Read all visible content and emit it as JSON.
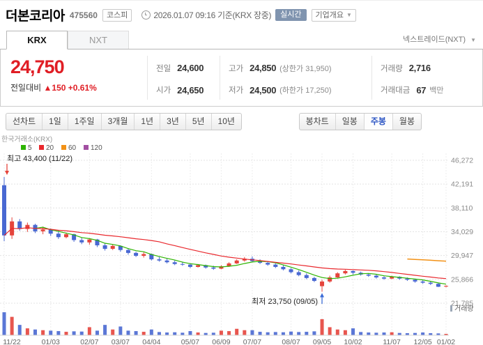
{
  "header": {
    "title": "더본코리아",
    "code": "475560",
    "market_badge": "코스피",
    "timestamp": "2026.01.07 09:16 기준(KRX 장중)",
    "realtime_badge": "실시간",
    "company_overview": "기업개요",
    "caret_down": "▼"
  },
  "tabs": {
    "krx": "KRX",
    "nxt": "NXT",
    "nxt_link": "넥스트레이드(NXT)"
  },
  "price": {
    "current": "24,750",
    "change_label": "전일대비",
    "change_arrow": "▲",
    "change_value": "150",
    "change_percent": "+0.61%"
  },
  "summary": {
    "prev_label": "전일",
    "prev": "24,600",
    "high_label": "고가",
    "high": "24,850",
    "high_note": "(상한가 31,950)",
    "volume_label": "거래량",
    "volume": "2,716",
    "open_label": "시가",
    "open": "24,650",
    "low_label": "저가",
    "low": "24,500",
    "low_note": "(하한가 17,250)",
    "value_label": "거래대금",
    "value": "67",
    "value_unit": "백만"
  },
  "toolbar": {
    "left_items": [
      "선차트",
      "1일",
      "1주일",
      "3개월",
      "1년",
      "3년",
      "5년",
      "10년"
    ],
    "right_items": [
      "봉차트",
      "일봉",
      "주봉",
      "월봉"
    ],
    "selected": "주봉"
  },
  "chart_data": {
    "type": "candlestick",
    "source_label": "한국거래소(KRX)",
    "volume_label": "거래량",
    "up_color": "#e5443c",
    "down_color": "#4968d2",
    "legend": [
      {
        "label": "5",
        "color": "#2db400"
      },
      {
        "label": "20",
        "color": "#e9282d"
      },
      {
        "label": "60",
        "color": "#f29116"
      },
      {
        "label": "120",
        "color": "#a24fa2"
      }
    ],
    "y_ticks": [
      46272,
      42191,
      38110,
      34029,
      29947,
      25866,
      21785
    ],
    "y_tick_labels": [
      "46,272",
      "42,191",
      "38,110",
      "34,029",
      "29,947",
      "25,866",
      "21,785"
    ],
    "x_tick_labels": [
      "11/22",
      "01/03",
      "02/07",
      "03/07",
      "04/04",
      "05/07",
      "06/09",
      "07/07",
      "08/07",
      "09/05",
      "10/02",
      "11/07",
      "12/05",
      "01/02"
    ],
    "x_tick_indices": [
      0,
      6,
      11,
      15,
      19,
      24,
      28,
      32,
      37,
      41,
      45,
      50,
      54,
      57
    ],
    "annotations": {
      "high": {
        "text": "최고 43,400 (11/22)",
        "index": 0,
        "price": 43400
      },
      "low": {
        "text": "최저 23,750 (09/05)",
        "index": 41,
        "price": 23750
      }
    },
    "candles": [
      [
        42000,
        43400,
        32400,
        33400,
        100
      ],
      [
        33400,
        36500,
        32800,
        35800,
        80
      ],
      [
        35800,
        36200,
        34200,
        34500,
        45
      ],
      [
        34500,
        35600,
        34000,
        35200,
        30
      ],
      [
        35200,
        35400,
        33800,
        34100,
        25
      ],
      [
        34100,
        34900,
        33600,
        34400,
        22
      ],
      [
        34400,
        34600,
        33300,
        33700,
        20
      ],
      [
        33700,
        34200,
        32800,
        33100,
        18
      ],
      [
        33100,
        33900,
        32900,
        33600,
        15
      ],
      [
        33600,
        33700,
        32300,
        32600,
        17
      ],
      [
        32600,
        33000,
        31900,
        32200,
        16
      ],
      [
        32200,
        32900,
        31800,
        32700,
        35
      ],
      [
        32700,
        32800,
        31400,
        31700,
        20
      ],
      [
        31700,
        32000,
        30800,
        31100,
        45
      ],
      [
        31100,
        31900,
        30900,
        31600,
        25
      ],
      [
        31600,
        31700,
        30600,
        30900,
        38
      ],
      [
        30900,
        31200,
        30100,
        30400,
        20
      ],
      [
        30400,
        30600,
        29700,
        29900,
        18
      ],
      [
        29900,
        30500,
        29600,
        30200,
        15
      ],
      [
        30200,
        30300,
        29100,
        29300,
        25
      ],
      [
        29300,
        29700,
        28900,
        29100,
        14
      ],
      [
        29100,
        29400,
        28600,
        28800,
        12
      ],
      [
        28800,
        29100,
        28300,
        28500,
        13
      ],
      [
        28500,
        28900,
        28200,
        28400,
        11
      ],
      [
        28400,
        28600,
        27800,
        28000,
        18
      ],
      [
        28000,
        28500,
        27900,
        28300,
        12
      ],
      [
        28300,
        28400,
        27700,
        27900,
        10
      ],
      [
        27900,
        28200,
        27500,
        27700,
        11
      ],
      [
        27700,
        28300,
        27600,
        28100,
        20
      ],
      [
        28100,
        28800,
        28000,
        28600,
        18
      ],
      [
        28600,
        29300,
        28500,
        29100,
        28
      ],
      [
        29100,
        29700,
        28900,
        29400,
        22
      ],
      [
        29400,
        29800,
        28800,
        29000,
        22
      ],
      [
        29000,
        29300,
        28500,
        28700,
        15
      ],
      [
        28700,
        29000,
        28200,
        28400,
        13
      ],
      [
        28400,
        28600,
        27800,
        28000,
        14
      ],
      [
        28000,
        28300,
        27400,
        27600,
        13
      ],
      [
        27600,
        27800,
        26900,
        27100,
        16
      ],
      [
        27100,
        27400,
        26400,
        26600,
        14
      ],
      [
        26600,
        26900,
        25900,
        26100,
        15
      ],
      [
        26100,
        26300,
        25400,
        25600,
        17
      ],
      [
        24700,
        25800,
        23750,
        25500,
        70
      ],
      [
        25500,
        26500,
        25300,
        26200,
        35
      ],
      [
        26200,
        27100,
        26100,
        26900,
        25
      ],
      [
        26900,
        27500,
        26700,
        27300,
        22
      ],
      [
        27300,
        27400,
        26700,
        27000,
        30
      ],
      [
        27000,
        27200,
        26500,
        26700,
        14
      ],
      [
        26700,
        26900,
        26300,
        26500,
        12
      ],
      [
        26500,
        26700,
        26000,
        26200,
        11
      ],
      [
        26200,
        26400,
        25800,
        26000,
        12
      ],
      [
        26000,
        26500,
        25900,
        26300,
        13
      ],
      [
        26300,
        26400,
        25800,
        26000,
        10
      ],
      [
        26000,
        26200,
        25600,
        25800,
        9
      ],
      [
        25800,
        25900,
        25300,
        25500,
        10
      ],
      [
        25500,
        25700,
        25100,
        25300,
        12
      ],
      [
        25300,
        25500,
        24900,
        25100,
        9
      ],
      [
        25100,
        25200,
        24550,
        24600,
        8
      ],
      [
        24650,
        24850,
        24500,
        24750,
        6
      ]
    ]
  }
}
